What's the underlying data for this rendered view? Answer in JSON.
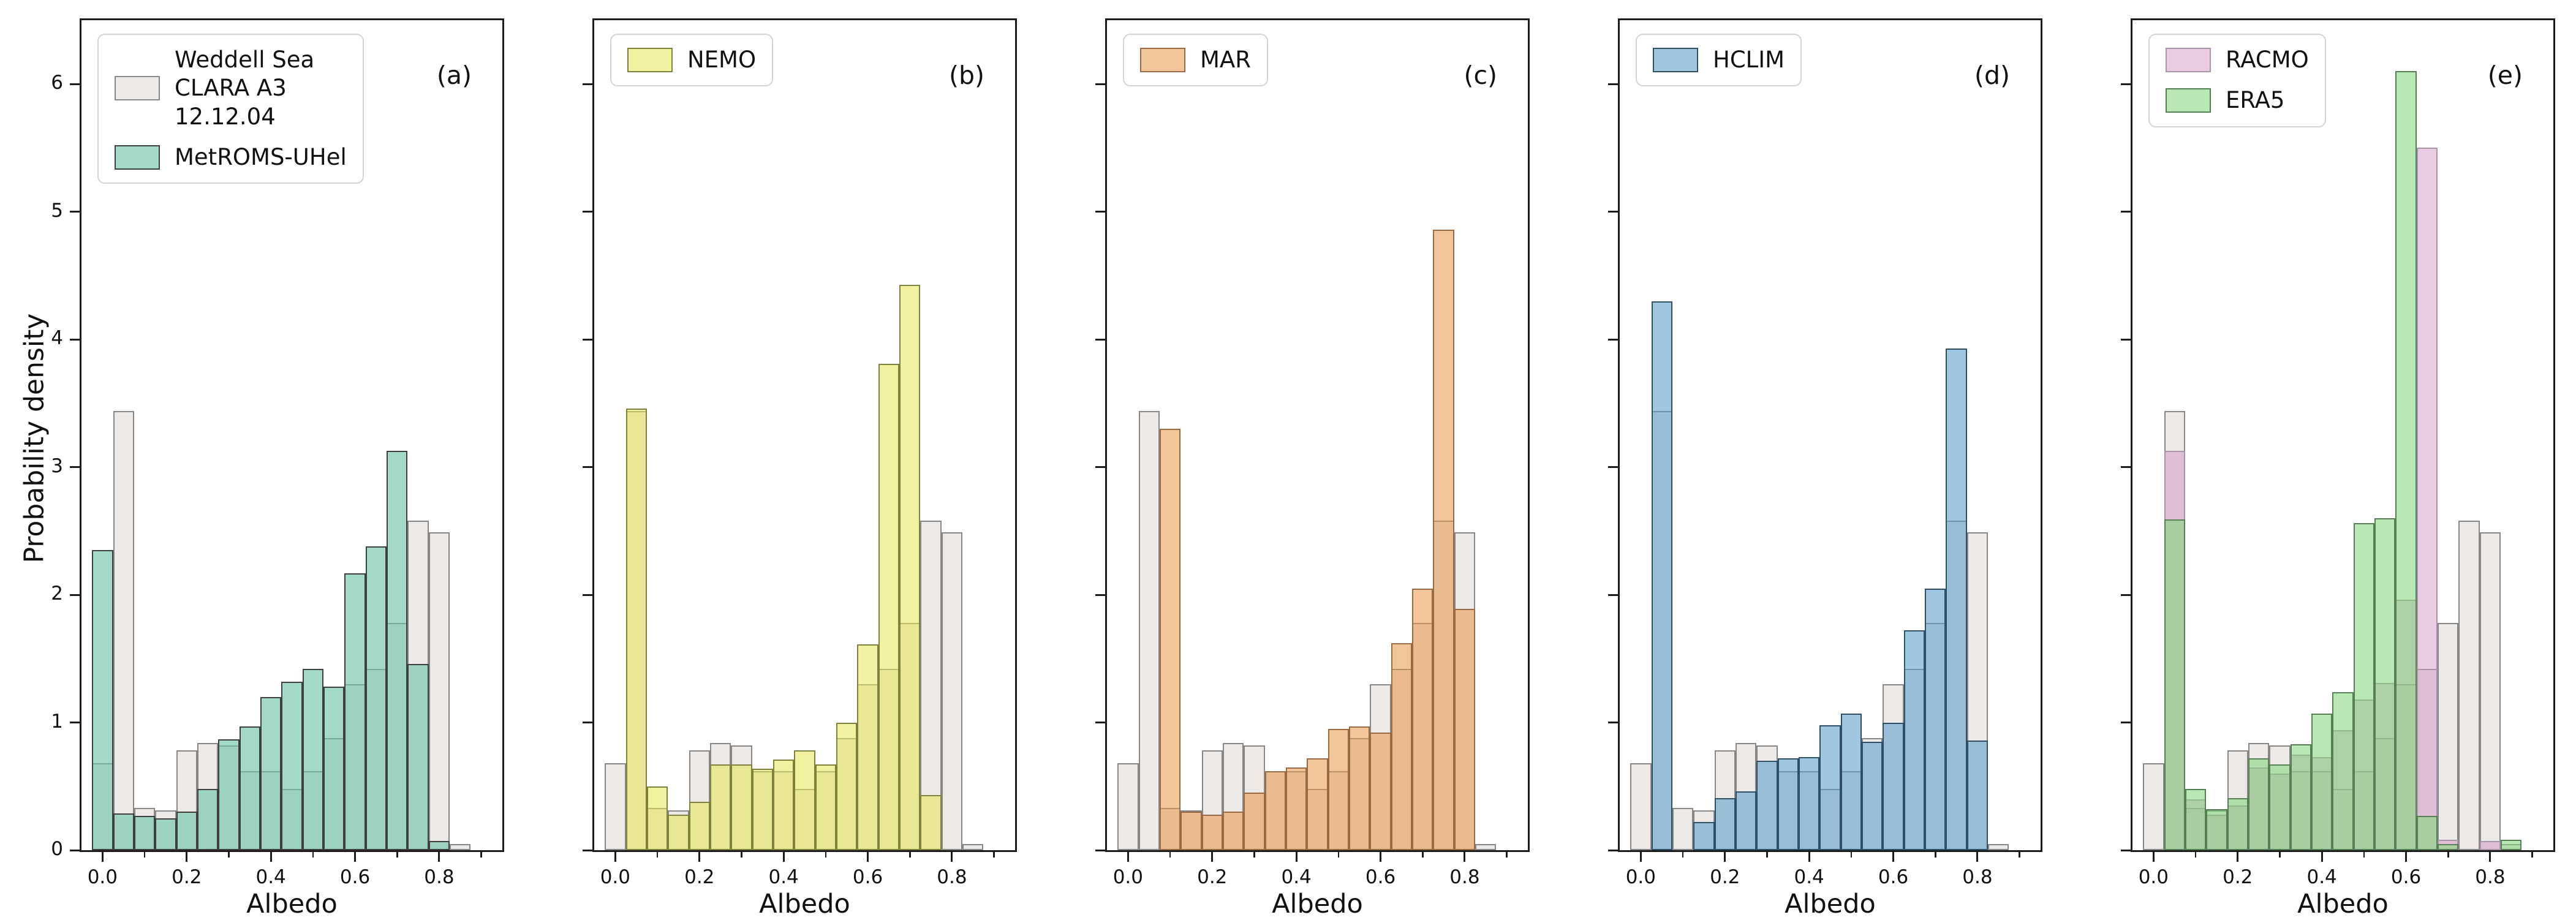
{
  "figure": {
    "ylabel": "Probability density",
    "xlabel": "Albedo",
    "background": "#ffffff",
    "spine_color": "#1c1c1c"
  },
  "chart_data": {
    "type": "bar",
    "subtype": "overlaid-histograms",
    "bin_centers": [
      0.0,
      0.05,
      0.1,
      0.15,
      0.2,
      0.25,
      0.3,
      0.35,
      0.4,
      0.45,
      0.5,
      0.55,
      0.6,
      0.65,
      0.7,
      0.75,
      0.8,
      0.85
    ],
    "bin_width": 0.05,
    "xlim": [
      -0.05,
      0.95
    ],
    "ylim": [
      0,
      6.5
    ],
    "x_ticks": [
      {
        "v": 0.0,
        "label": "0.0"
      },
      {
        "v": 0.2,
        "label": "0.2"
      },
      {
        "v": 0.4,
        "label": "0.4"
      },
      {
        "v": 0.6,
        "label": "0.6"
      },
      {
        "v": 0.8,
        "label": "0.8"
      }
    ],
    "x_minor_ticks": [
      0.1,
      0.3,
      0.5,
      0.7,
      0.9
    ],
    "y_ticks": [
      {
        "v": 0,
        "label": "0"
      },
      {
        "v": 1,
        "label": "1"
      },
      {
        "v": 2,
        "label": "2"
      },
      {
        "v": 3,
        "label": "3"
      },
      {
        "v": 4,
        "label": "4"
      },
      {
        "v": 5,
        "label": "5"
      },
      {
        "v": 6,
        "label": "6"
      }
    ],
    "xlabel": "Albedo",
    "ylabel": "Probability density",
    "grid": false,
    "series": {
      "clara": {
        "legend_label": "Weddell Sea\nCLARA A3\n12.12.04",
        "fill": "rgba(236,231,229,0.93)",
        "edge": "#878787",
        "values": [
          0.68,
          3.44,
          0.33,
          0.31,
          0.78,
          0.84,
          0.82,
          0.62,
          0.62,
          0.48,
          0.62,
          0.88,
          1.3,
          1.42,
          1.78,
          2.58,
          2.49,
          0.05
        ]
      },
      "metroms": {
        "legend_label": "MetROMS-UHel",
        "fill": "rgba(105,193,167,0.62)",
        "edge": "#3f3f3f",
        "values": [
          2.35,
          0.29,
          0.27,
          0.25,
          0.3,
          0.48,
          0.87,
          0.97,
          1.2,
          1.32,
          1.42,
          1.28,
          2.17,
          2.38,
          3.13,
          1.46,
          0.07,
          0
        ]
      },
      "nemo": {
        "legend_label": "NEMO",
        "fill": "rgba(230,230,80,0.55)",
        "edge": "#80803f",
        "values": [
          0,
          3.46,
          0.5,
          0.28,
          0.38,
          0.67,
          0.67,
          0.64,
          0.71,
          0.78,
          0.67,
          1.0,
          1.61,
          3.81,
          4.43,
          0.43,
          0,
          0
        ]
      },
      "mar": {
        "legend_label": "MAR",
        "fill": "rgba(233,150,73,0.55)",
        "edge": "#9a6a44",
        "values": [
          0,
          0,
          3.3,
          0.3,
          0.28,
          0.3,
          0.45,
          0.62,
          0.65,
          0.72,
          0.95,
          0.97,
          0.92,
          1.62,
          2.05,
          4.86,
          1.89,
          0
        ]
      },
      "hclim": {
        "legend_label": "HCLIM",
        "fill": "rgba(90,158,202,0.58)",
        "edge": "#2e4f66",
        "values": [
          0,
          4.3,
          0,
          0.22,
          0.41,
          0.46,
          0.7,
          0.72,
          0.73,
          0.98,
          1.07,
          0.85,
          1.0,
          1.72,
          2.05,
          3.93,
          0.86,
          0
        ]
      },
      "racmo": {
        "legend_label": "RACMO",
        "fill": "rgba(212,152,200,0.50)",
        "edge": "#a893a8",
        "values": [
          0,
          3.13,
          0.4,
          0.28,
          0.35,
          0.65,
          0.6,
          0.75,
          0.73,
          0.94,
          1.18,
          1.31,
          1.96,
          5.5,
          0.08,
          0,
          0.07,
          0
        ]
      },
      "era5": {
        "legend_label": "ERA5",
        "fill": "rgba(126,214,116,0.55)",
        "edge": "#567f56",
        "values": [
          0,
          2.59,
          0.48,
          0.32,
          0.41,
          0.72,
          0.67,
          0.83,
          1.07,
          1.24,
          2.56,
          2.6,
          6.1,
          0.27,
          0.05,
          0,
          0,
          0.08
        ]
      }
    },
    "panels": [
      {
        "id": "a",
        "letter": "(a)",
        "draw": [
          "clara",
          "metroms"
        ],
        "legend": [
          "clara",
          "metroms"
        ],
        "y_tick_labels": true
      },
      {
        "id": "b",
        "letter": "(b)",
        "draw": [
          "clara",
          "nemo"
        ],
        "legend": [
          "nemo"
        ],
        "y_tick_labels": false
      },
      {
        "id": "c",
        "letter": "(c)",
        "draw": [
          "clara",
          "mar"
        ],
        "legend": [
          "mar"
        ],
        "y_tick_labels": false
      },
      {
        "id": "d",
        "letter": "(d)",
        "draw": [
          "clara",
          "hclim"
        ],
        "legend": [
          "hclim"
        ],
        "y_tick_labels": false
      },
      {
        "id": "e",
        "letter": "(e)",
        "draw": [
          "clara",
          "racmo",
          "era5"
        ],
        "legend": [
          "racmo",
          "era5"
        ],
        "y_tick_labels": false
      }
    ],
    "legend_position": "upper left",
    "panel_letter_position": "upper right"
  }
}
